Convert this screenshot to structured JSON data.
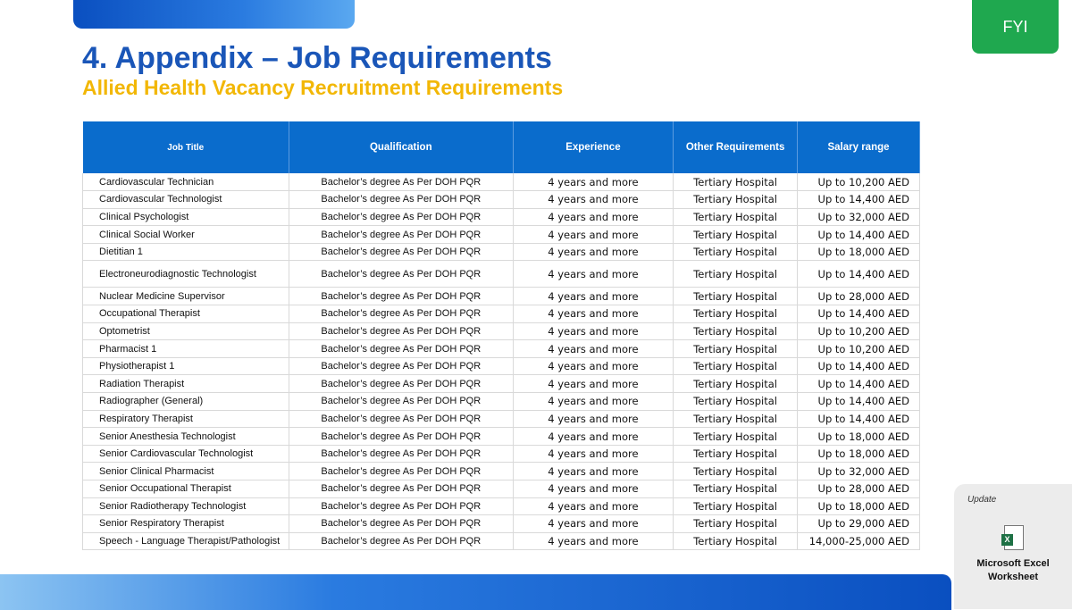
{
  "badge": "FYI",
  "title": "4. Appendix – Job Requirements",
  "subtitle": "Allied Health Vacancy Recruitment Requirements",
  "table": {
    "headers": [
      "Job Title",
      "Qualification",
      "Experience",
      "Other Requirements",
      "Salary range"
    ],
    "rows": [
      [
        "Cardiovascular Technician",
        "Bachelor’s degree As Per DOH PQR",
        "4 years and more",
        "Tertiary Hospital",
        "Up to 10,200 AED"
      ],
      [
        "Cardiovascular Technologist",
        "Bachelor’s degree As Per DOH PQR",
        "4 years and more",
        "Tertiary Hospital",
        "Up to 14,400 AED"
      ],
      [
        "Clinical Psychologist",
        "Bachelor’s degree As Per DOH PQR",
        "4 years and more",
        "Tertiary Hospital",
        "Up to 32,000 AED"
      ],
      [
        "Clinical Social Worker",
        "Bachelor’s degree As Per DOH PQR",
        "4 years and more",
        "Tertiary Hospital",
        "Up to 14,400 AED"
      ],
      [
        "Dietitian 1",
        "Bachelor’s degree As Per DOH PQR",
        "4 years and more",
        "Tertiary Hospital",
        "Up to 18,000 AED"
      ],
      [
        "Electroneurodiagnostic Technologist",
        "Bachelor’s degree As Per DOH PQR",
        "4 years and more",
        "Tertiary Hospital",
        "Up to 14,400 AED"
      ],
      [
        "Nuclear Medicine Supervisor",
        "Bachelor’s degree As Per DOH PQR",
        "4 years and more",
        "Tertiary Hospital",
        "Up to 28,000 AED"
      ],
      [
        "Occupational Therapist",
        "Bachelor’s degree As Per DOH PQR",
        "4 years and more",
        "Tertiary Hospital",
        "Up to 14,400 AED"
      ],
      [
        "Optometrist",
        "Bachelor’s degree As Per DOH PQR",
        "4 years and more",
        "Tertiary Hospital",
        "Up to 10,200 AED"
      ],
      [
        "Pharmacist 1",
        "Bachelor’s degree As Per DOH PQR",
        "4 years and more",
        "Tertiary Hospital",
        "Up to 10,200 AED"
      ],
      [
        "Physiotherapist 1",
        "Bachelor’s degree As Per DOH PQR",
        "4 years and more",
        "Tertiary Hospital",
        "Up to 14,400 AED"
      ],
      [
        "Radiation Therapist",
        "Bachelor’s degree As Per DOH PQR",
        "4 years and more",
        "Tertiary Hospital",
        "Up to 14,400 AED"
      ],
      [
        "Radiographer (General)",
        "Bachelor’s degree As Per DOH PQR",
        "4 years and more",
        "Tertiary Hospital",
        "Up to 14,400 AED"
      ],
      [
        "Respiratory Therapist",
        "Bachelor’s degree As Per DOH PQR",
        "4 years and more",
        "Tertiary Hospital",
        "Up to 14,400 AED"
      ],
      [
        "Senior Anesthesia Technologist",
        "Bachelor’s degree As Per DOH PQR",
        "4 years and more",
        "Tertiary Hospital",
        "Up to 18,000 AED"
      ],
      [
        "Senior Cardiovascular Technologist",
        "Bachelor’s degree As Per DOH PQR",
        "4 years and more",
        "Tertiary Hospital",
        "Up to 18,000 AED"
      ],
      [
        "Senior Clinical Pharmacist",
        "Bachelor’s degree As Per DOH PQR",
        "4 years and more",
        "Tertiary Hospital",
        "Up to 32,000 AED"
      ],
      [
        "Senior Occupational Therapist",
        "Bachelor’s degree As Per DOH PQR",
        "4 years and more",
        "Tertiary Hospital",
        "Up to 28,000 AED"
      ],
      [
        "Senior Radiotherapy Technologist",
        "Bachelor’s degree As Per DOH PQR",
        "4 years and more",
        "Tertiary Hospital",
        "Up to 18,000 AED"
      ],
      [
        "Senior Respiratory Therapist",
        "Bachelor’s degree As Per DOH PQR",
        "4 years and more",
        "Tertiary Hospital",
        "Up to 29,000 AED"
      ],
      [
        "Speech - Language Therapist/Pathologist",
        "Bachelor’s degree As Per DOH PQR",
        "4 years and more",
        "Tertiary Hospital",
        "14,000-25,000 AED"
      ]
    ]
  },
  "attachment": {
    "label": "Update",
    "icon": "excel-file-icon",
    "icon_letter": "X",
    "name_line1": "Microsoft Excel",
    "name_line2": "Worksheet"
  },
  "colors": {
    "title": "#1a56b8",
    "subtitle": "#f2b705",
    "header": "#0a6ccc",
    "badge": "#1fa84f"
  }
}
